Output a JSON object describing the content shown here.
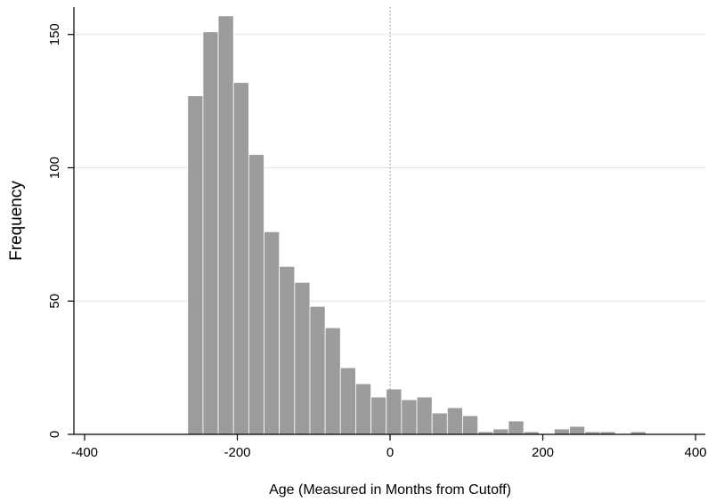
{
  "chart_data": {
    "type": "bar",
    "subtype": "histogram",
    "title": "",
    "xlabel": "Age (Measured in Months from Cutoff)",
    "ylabel": "Frequency",
    "xlim": [
      -420,
      420
    ],
    "ylim": [
      0,
      160
    ],
    "xticks": [
      -400,
      -200,
      0,
      200,
      400
    ],
    "yticks": [
      0,
      50,
      100,
      150
    ],
    "grid": "horizontal",
    "reference_line": {
      "x": 0,
      "style": "dotted"
    },
    "bin_width": 20,
    "bar_color": "#9c9c9c",
    "bar_edge_color": "#ffffff",
    "bins": [
      {
        "x0": -265,
        "value": 127
      },
      {
        "x0": -245,
        "value": 151
      },
      {
        "x0": -225,
        "value": 157
      },
      {
        "x0": -205,
        "value": 132
      },
      {
        "x0": -185,
        "value": 105
      },
      {
        "x0": -165,
        "value": 76
      },
      {
        "x0": -145,
        "value": 63
      },
      {
        "x0": -125,
        "value": 57
      },
      {
        "x0": -105,
        "value": 48
      },
      {
        "x0": -85,
        "value": 40
      },
      {
        "x0": -65,
        "value": 25
      },
      {
        "x0": -45,
        "value": 19
      },
      {
        "x0": -25,
        "value": 14
      },
      {
        "x0": -5,
        "value": 17
      },
      {
        "x0": 15,
        "value": 13
      },
      {
        "x0": 35,
        "value": 14
      },
      {
        "x0": 55,
        "value": 8
      },
      {
        "x0": 75,
        "value": 10
      },
      {
        "x0": 95,
        "value": 7
      },
      {
        "x0": 115,
        "value": 1
      },
      {
        "x0": 135,
        "value": 2
      },
      {
        "x0": 155,
        "value": 5
      },
      {
        "x0": 175,
        "value": 1
      },
      {
        "x0": 195,
        "value": 0
      },
      {
        "x0": 215,
        "value": 2
      },
      {
        "x0": 235,
        "value": 3
      },
      {
        "x0": 255,
        "value": 1
      },
      {
        "x0": 275,
        "value": 1
      },
      {
        "x0": 295,
        "value": 0
      },
      {
        "x0": 315,
        "value": 1
      }
    ]
  }
}
